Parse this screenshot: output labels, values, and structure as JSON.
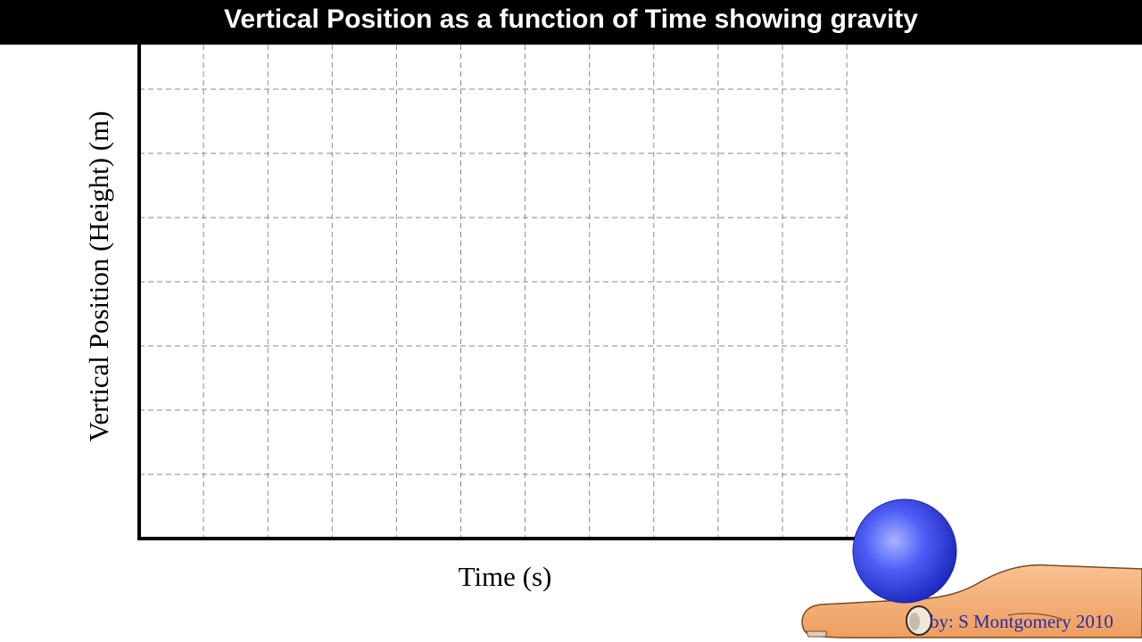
{
  "header": {
    "title": "Vertical Position as a function of Time showing gravity"
  },
  "chart_data": {
    "type": "line",
    "title": "Vertical Position as a function of Time showing gravity",
    "xlabel": "Time (s)",
    "ylabel": "Vertical Position (Height) (m)",
    "x_divisions": 11,
    "y_divisions": 8,
    "grid": true,
    "grid_style": "dashed",
    "tick_labels_shown": false,
    "series": []
  },
  "illustration": {
    "objects": [
      "ball",
      "hand"
    ],
    "ball_color": "#3f4ff0"
  },
  "credit": {
    "text": "by: S Montgomery 2010"
  },
  "colors": {
    "title_bg": "#000000",
    "title_fg": "#ffffff",
    "grid": "#8a8a8a",
    "axis": "#000000",
    "skin": "#f3ad70",
    "skin_outline": "#7a4a22",
    "credit": "#2a2aa8"
  }
}
